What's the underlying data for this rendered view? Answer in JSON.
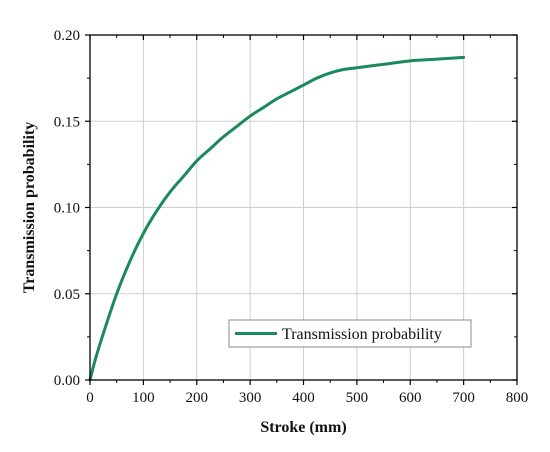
{
  "colors": {
    "series": "#1a8a5a",
    "grid": "#cfcfcf",
    "axis": "#000000",
    "legend_border": "#8c8c8c",
    "background": "#ffffff"
  },
  "chart_data": {
    "type": "line",
    "title": "",
    "xlabel": "Stroke (mm)",
    "ylabel": "Transmission probability",
    "xlim": [
      0,
      800
    ],
    "ylim": [
      0.0,
      0.2
    ],
    "x_ticks": [
      0,
      100,
      200,
      300,
      400,
      500,
      600,
      700,
      800
    ],
    "x_tick_labels": [
      "0",
      "100",
      "200",
      "300",
      "400",
      "500",
      "600",
      "700",
      "800"
    ],
    "y_ticks": [
      0.0,
      0.05,
      0.1,
      0.15,
      0.2
    ],
    "y_tick_labels": [
      "0.00",
      "0.05",
      "0.10",
      "0.15",
      "0.20"
    ],
    "grid": true,
    "legend_position": "bottom-right",
    "series": [
      {
        "name": "Transmission probability",
        "x": [
          0,
          10,
          25,
          50,
          75,
          100,
          125,
          150,
          175,
          200,
          225,
          250,
          275,
          300,
          325,
          350,
          375,
          400,
          425,
          450,
          475,
          500,
          550,
          600,
          650,
          700
        ],
        "y": [
          0.0,
          0.012,
          0.027,
          0.05,
          0.069,
          0.085,
          0.098,
          0.109,
          0.118,
          0.127,
          0.134,
          0.141,
          0.147,
          0.153,
          0.158,
          0.163,
          0.167,
          0.171,
          0.175,
          0.178,
          0.18,
          0.181,
          0.183,
          0.185,
          0.186,
          0.187
        ]
      }
    ]
  }
}
